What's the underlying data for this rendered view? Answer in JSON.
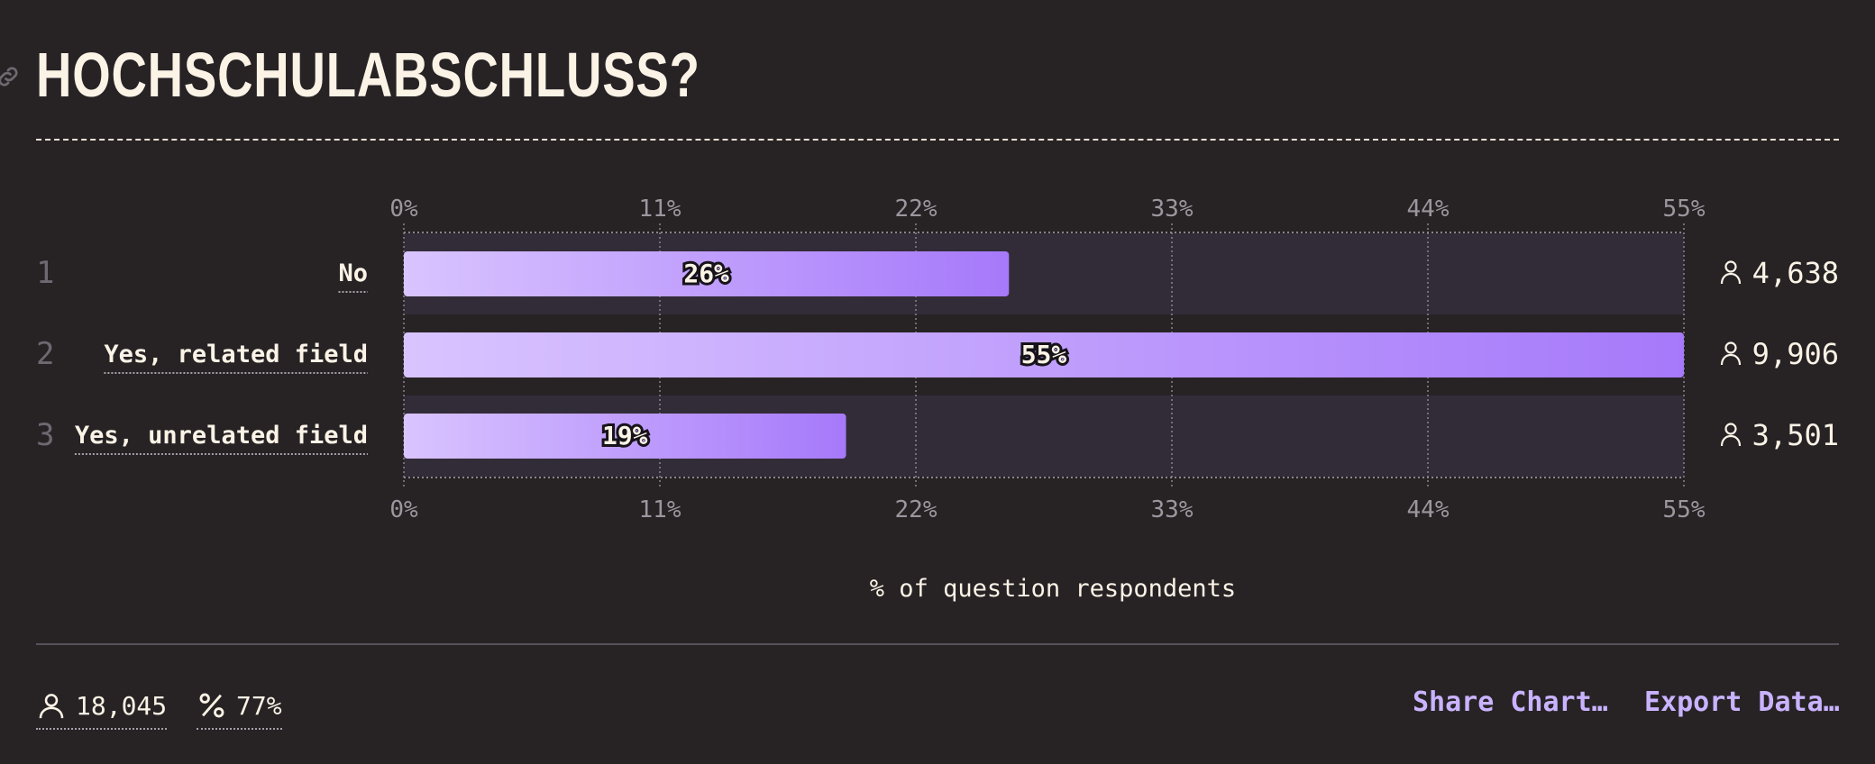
{
  "title": "HOCHSCHULABSCHLUSS?",
  "footer": {
    "respondents": "18,045",
    "percent": "77%",
    "share_label": "Share Chart…",
    "export_label": "Export Data…"
  },
  "icons": {
    "link": "link-icon",
    "person": "person-icon",
    "percent": "percent-icon"
  },
  "colors": {
    "background": "#272325",
    "bar_start": "#d9c4ff",
    "bar_end": "#a679fa",
    "track": "#322c38",
    "accent_text": "#c9b3ff"
  },
  "chart_data": {
    "type": "bar",
    "orientation": "horizontal",
    "categories": [
      "No",
      "Yes, related field",
      "Yes, unrelated field"
    ],
    "ranks": [
      "1",
      "2",
      "3"
    ],
    "values": [
      26,
      55,
      19
    ],
    "value_labels": [
      "26%",
      "55%",
      "19%"
    ],
    "counts": [
      "4,638",
      "9,906",
      "3,501"
    ],
    "xlim": [
      0,
      55
    ],
    "ticks": [
      0,
      11,
      22,
      33,
      44,
      55
    ],
    "tick_labels": [
      "0%",
      "11%",
      "22%",
      "33%",
      "44%",
      "55%"
    ],
    "xlabel": "% of question respondents",
    "grid": true
  }
}
